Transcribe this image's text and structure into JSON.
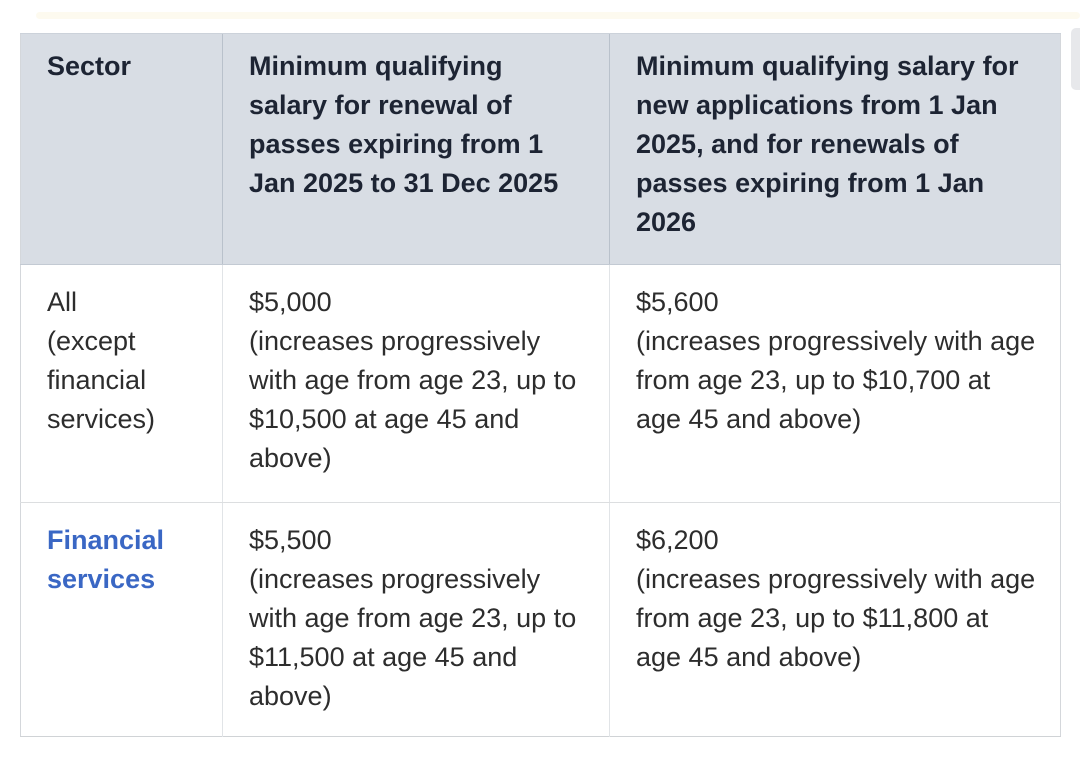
{
  "table": {
    "headers": [
      "Sector",
      "Minimum qualifying salary for renewal of passes expiring from 1 Jan 2025 to 31 Dec 2025",
      "Minimum qualifying salary for new applications from 1 Jan 2025, and for renewals of passes expiring from 1 Jan 2026"
    ],
    "rows": [
      {
        "sector": "All\n(except\nfinancial\nservices)",
        "renewal": "$5,000\n(increases progressively with age from age 23, up to $10,500 at age 45 and above)",
        "new_apps": "$5,600\n(increases progressively with age from age 23, up to $10,700 at age 45 and above)"
      },
      {
        "sector": "Financial\nservices",
        "renewal": "$5,500\n(increases progressively with age from age 23, up to $11,500 at age 45 and above)",
        "new_apps": "$6,200\n(increases progressively with age from age 23, up to $11,800 at age 45 and above)"
      }
    ],
    "colors": {
      "header_bg": "#d8dde4",
      "header_text": "#1d2433",
      "body_text": "#2d2d2d",
      "link": "#3a67c4"
    }
  }
}
